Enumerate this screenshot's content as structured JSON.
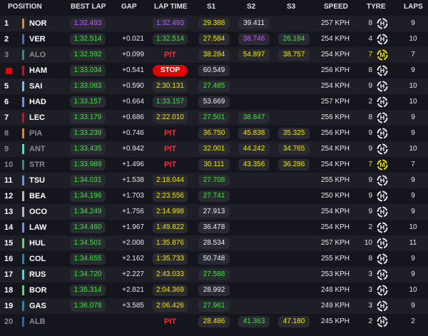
{
  "headers": {
    "position": "POSITION",
    "best_lap": "BEST LAP",
    "gap": "GAP",
    "lap_time": "LAP TIME",
    "s1": "S1",
    "s2": "S2",
    "s3": "S3",
    "speed": "SPEED",
    "tyre": "TYRE",
    "laps": "LAPS"
  },
  "rows": [
    {
      "pos": "1",
      "name": "NOR",
      "team": "#ff8000",
      "best": "1:32.493",
      "best_color": "purple",
      "gap": "",
      "lap": "1:32.493",
      "lap_color": "purple",
      "s1": "29.388",
      "s1c": "yellow",
      "s2": "39.411",
      "s2c": "white",
      "s3": "",
      "s3c": "",
      "speed": "257 KPH",
      "tyre_age": "8",
      "tyre_cmp": "H",
      "laps": "9",
      "dim": false
    },
    {
      "pos": "2",
      "name": "VER",
      "team": "#3671c6",
      "best": "1:32.514",
      "best_color": "green",
      "gap": "+0.021",
      "lap": "1:32.514",
      "lap_color": "green",
      "s1": "27.584",
      "s1c": "yellow",
      "s2": "38.746",
      "s2c": "purple",
      "s3": "26.184",
      "s3c": "green",
      "speed": "254 KPH",
      "tyre_age": "4",
      "tyre_cmp": "H",
      "laps": "10",
      "dim": false
    },
    {
      "pos": "3",
      "name": "ALO",
      "team": "#229971",
      "best": "1:32.592",
      "best_color": "green",
      "gap": "+0.099",
      "lap": "PIT",
      "lap_color": "pit",
      "s1": "38.284",
      "s1c": "yellow",
      "s2": "54.897",
      "s2c": "yellow",
      "s3": "38.757",
      "s3c": "yellow",
      "speed": "254 KPH",
      "tyre_age": "7",
      "tyre_cmp": "M",
      "laps": "7",
      "dim": true
    },
    {
      "pos": "",
      "name": "HAM",
      "team": "#e8002d",
      "best": "1:33.034",
      "best_color": "green",
      "gap": "+0.541",
      "lap": "STOP",
      "lap_color": "stop",
      "s1": "60.549",
      "s1c": "white",
      "s2": "",
      "s2c": "",
      "s3": "",
      "s3c": "",
      "speed": "256 KPH",
      "tyre_age": "8",
      "tyre_cmp": "H",
      "laps": "9",
      "dim": false,
      "stop": true
    },
    {
      "pos": "5",
      "name": "SAI",
      "team": "#64c4ff",
      "best": "1:33.083",
      "best_color": "green",
      "gap": "+0.590",
      "lap": "2:30.131",
      "lap_color": "yellow",
      "s1": "27.485",
      "s1c": "green",
      "s2": "",
      "s2c": "",
      "s3": "",
      "s3c": "",
      "speed": "254 KPH",
      "tyre_age": "9",
      "tyre_cmp": "H",
      "laps": "10",
      "dim": false
    },
    {
      "pos": "6",
      "name": "HAD",
      "team": "#6692ff",
      "best": "1:33.157",
      "best_color": "green",
      "gap": "+0.664",
      "lap": "1:33.157",
      "lap_color": "green",
      "s1": "53.669",
      "s1c": "white",
      "s2": "",
      "s2c": "",
      "s3": "",
      "s3c": "",
      "speed": "257 KPH",
      "tyre_age": "2",
      "tyre_cmp": "H",
      "laps": "10",
      "dim": false
    },
    {
      "pos": "7",
      "name": "LEC",
      "team": "#e8002d",
      "best": "1:33.179",
      "best_color": "green",
      "gap": "+0.686",
      "lap": "2:22.010",
      "lap_color": "yellow",
      "s1": "27.501",
      "s1c": "green",
      "s2": "38.847",
      "s2c": "green",
      "s3": "",
      "s3c": "",
      "speed": "256 KPH",
      "tyre_age": "8",
      "tyre_cmp": "H",
      "laps": "9",
      "dim": false
    },
    {
      "pos": "8",
      "name": "PIA",
      "team": "#ff8000",
      "best": "1:33.239",
      "best_color": "green",
      "gap": "+0.746",
      "lap": "PIT",
      "lap_color": "pit",
      "s1": "36.750",
      "s1c": "yellow",
      "s2": "45.838",
      "s2c": "yellow",
      "s3": "35.325",
      "s3c": "yellow",
      "speed": "256 KPH",
      "tyre_age": "9",
      "tyre_cmp": "H",
      "laps": "9",
      "dim": true
    },
    {
      "pos": "9",
      "name": "ANT",
      "team": "#27f4d2",
      "best": "1:33.435",
      "best_color": "green",
      "gap": "+0.942",
      "lap": "PIT",
      "lap_color": "pit",
      "s1": "32.001",
      "s1c": "yellow",
      "s2": "44.242",
      "s2c": "yellow",
      "s3": "34.765",
      "s3c": "yellow",
      "speed": "254 KPH",
      "tyre_age": "9",
      "tyre_cmp": "H",
      "laps": "10",
      "dim": true
    },
    {
      "pos": "10",
      "name": "STR",
      "team": "#229971",
      "best": "1:33.989",
      "best_color": "green",
      "gap": "+1.496",
      "lap": "PIT",
      "lap_color": "pit",
      "s1": "30.111",
      "s1c": "yellow",
      "s2": "43.356",
      "s2c": "yellow",
      "s3": "36.286",
      "s3c": "yellow",
      "speed": "254 KPH",
      "tyre_age": "7",
      "tyre_cmp": "M",
      "laps": "7",
      "dim": true
    },
    {
      "pos": "11",
      "name": "TSU",
      "team": "#6692ff",
      "best": "1:34.031",
      "best_color": "green",
      "gap": "+1.538",
      "lap": "2:18.044",
      "lap_color": "yellow",
      "s1": "27.708",
      "s1c": "green",
      "s2": "",
      "s2c": "",
      "s3": "",
      "s3c": "",
      "speed": "255 KPH",
      "tyre_age": "9",
      "tyre_cmp": "H",
      "laps": "9",
      "dim": false
    },
    {
      "pos": "12",
      "name": "BEA",
      "team": "#b6babd",
      "best": "1:34.196",
      "best_color": "green",
      "gap": "+1.703",
      "lap": "2:23.556",
      "lap_color": "yellow",
      "s1": "27.741",
      "s1c": "green",
      "s2": "",
      "s2c": "",
      "s3": "",
      "s3c": "",
      "speed": "250 KPH",
      "tyre_age": "9",
      "tyre_cmp": "H",
      "laps": "9",
      "dim": false
    },
    {
      "pos": "13",
      "name": "OCO",
      "team": "#b6babd",
      "best": "1:34.249",
      "best_color": "green",
      "gap": "+1.756",
      "lap": "2:14.998",
      "lap_color": "yellow",
      "s1": "27.913",
      "s1c": "white",
      "s2": "",
      "s2c": "",
      "s3": "",
      "s3c": "",
      "speed": "254 KPH",
      "tyre_age": "9",
      "tyre_cmp": "H",
      "laps": "9",
      "dim": false
    },
    {
      "pos": "14",
      "name": "LAW",
      "team": "#6692ff",
      "best": "1:34.460",
      "best_color": "green",
      "gap": "+1.967",
      "lap": "1:49.822",
      "lap_color": "yellow",
      "s1": "36.478",
      "s1c": "white",
      "s2": "",
      "s2c": "",
      "s3": "",
      "s3c": "",
      "speed": "254 KPH",
      "tyre_age": "2",
      "tyre_cmp": "H",
      "laps": "10",
      "dim": false
    },
    {
      "pos": "15",
      "name": "HUL",
      "team": "#52e252",
      "best": "1:34.501",
      "best_color": "green",
      "gap": "+2.008",
      "lap": "1:35.876",
      "lap_color": "yellow",
      "s1": "28.534",
      "s1c": "white",
      "s2": "",
      "s2c": "",
      "s3": "",
      "s3c": "",
      "speed": "257 KPH",
      "tyre_age": "10",
      "tyre_cmp": "H",
      "laps": "11",
      "dim": false
    },
    {
      "pos": "16",
      "name": "COL",
      "team": "#0093cc",
      "best": "1:34.655",
      "best_color": "green",
      "gap": "+2.162",
      "lap": "1:35.733",
      "lap_color": "yellow",
      "s1": "50.748",
      "s1c": "white",
      "s2": "",
      "s2c": "",
      "s3": "",
      "s3c": "",
      "speed": "255 KPH",
      "tyre_age": "8",
      "tyre_cmp": "H",
      "laps": "9",
      "dim": false
    },
    {
      "pos": "17",
      "name": "RUS",
      "team": "#27f4d2",
      "best": "1:34.720",
      "best_color": "green",
      "gap": "+2.227",
      "lap": "2:43.033",
      "lap_color": "yellow",
      "s1": "27.588",
      "s1c": "green",
      "s2": "",
      "s2c": "",
      "s3": "",
      "s3c": "",
      "speed": "253 KPH",
      "tyre_age": "3",
      "tyre_cmp": "H",
      "laps": "9",
      "dim": false
    },
    {
      "pos": "18",
      "name": "BOR",
      "team": "#52e252",
      "best": "1:35.314",
      "best_color": "green",
      "gap": "+2.821",
      "lap": "2:04.369",
      "lap_color": "yellow",
      "s1": "28.992",
      "s1c": "white",
      "s2": "",
      "s2c": "",
      "s3": "",
      "s3c": "",
      "speed": "248 KPH",
      "tyre_age": "3",
      "tyre_cmp": "H",
      "laps": "10",
      "dim": false
    },
    {
      "pos": "19",
      "name": "GAS",
      "team": "#0093cc",
      "best": "1:36.078",
      "best_color": "green",
      "gap": "+3.585",
      "lap": "2:06.426",
      "lap_color": "yellow",
      "s1": "27.961",
      "s1c": "green",
      "s2": "",
      "s2c": "",
      "s3": "",
      "s3c": "",
      "speed": "249 KPH",
      "tyre_age": "3",
      "tyre_cmp": "H",
      "laps": "9",
      "dim": false
    },
    {
      "pos": "20",
      "name": "ALB",
      "team": "#1868db",
      "best": "",
      "best_color": "green",
      "gap": "",
      "lap": "PIT",
      "lap_color": "pit",
      "s1": "28.486",
      "s1c": "yellow",
      "s2": "41.363",
      "s2c": "green",
      "s3": "47.180",
      "s3c": "yellow",
      "speed": "245 KPH",
      "tyre_age": "2",
      "tyre_cmp": "H",
      "laps": "2",
      "dim": true
    }
  ]
}
